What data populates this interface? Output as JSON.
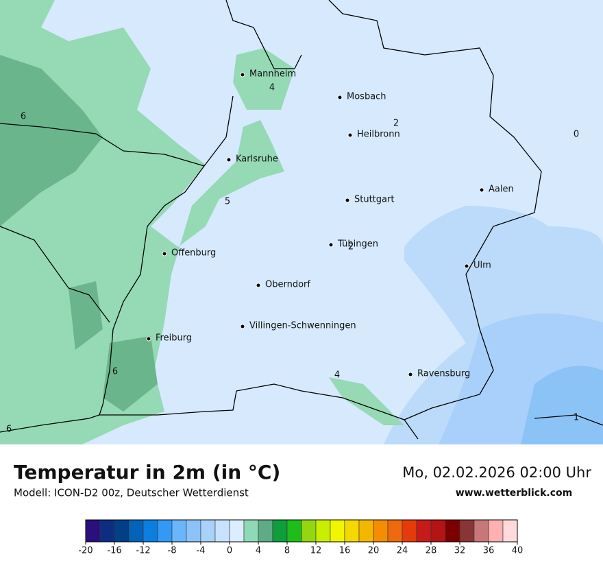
{
  "map": {
    "cities": [
      "Mannheim",
      "Mosbach",
      "Heilbronn",
      "Karlsruhe",
      "Aalen",
      "Stuttgart",
      "Tübingen",
      "Offenburg",
      "Ulm",
      "Oberndorf",
      "Villingen-Schwenningen",
      "Freiburg",
      "Ravensburg"
    ],
    "contour_labels": [
      6,
      4,
      2,
      0,
      5,
      2,
      6,
      4,
      1,
      6
    ]
  },
  "header": {
    "title": "Temperatur in 2m (in °C)",
    "subtitle": "Modell: ICON-D2 00z, Deutscher Wetterdienst",
    "date": "Mo, 02.02.2026 02:00 Uhr",
    "website": "www.wetterblick.com"
  },
  "legend": {
    "ticks": [
      -20,
      -16,
      -12,
      -8,
      -4,
      0,
      4,
      8,
      12,
      16,
      20,
      24,
      28,
      32,
      36,
      40
    ],
    "colors": [
      "#2a0f7d",
      "#0d2e80",
      "#013f86",
      "#0264b8",
      "#0a7fe0",
      "#3399f5",
      "#6ab5fb",
      "#8cc3f7",
      "#a9d2fb",
      "#c8e2fd",
      "#dbeeff",
      "#8fd9b7",
      "#5fab88",
      "#0e9e3c",
      "#1fbd1a",
      "#94d610",
      "#c9ee00",
      "#f0f500",
      "#f4d800",
      "#f4b700",
      "#f48d00",
      "#ee6a0d",
      "#e53b0a",
      "#c71a1a",
      "#b51414",
      "#7d0000",
      "#8a3535",
      "#c77777",
      "#ffb0b0",
      "#ffdada"
    ]
  }
}
